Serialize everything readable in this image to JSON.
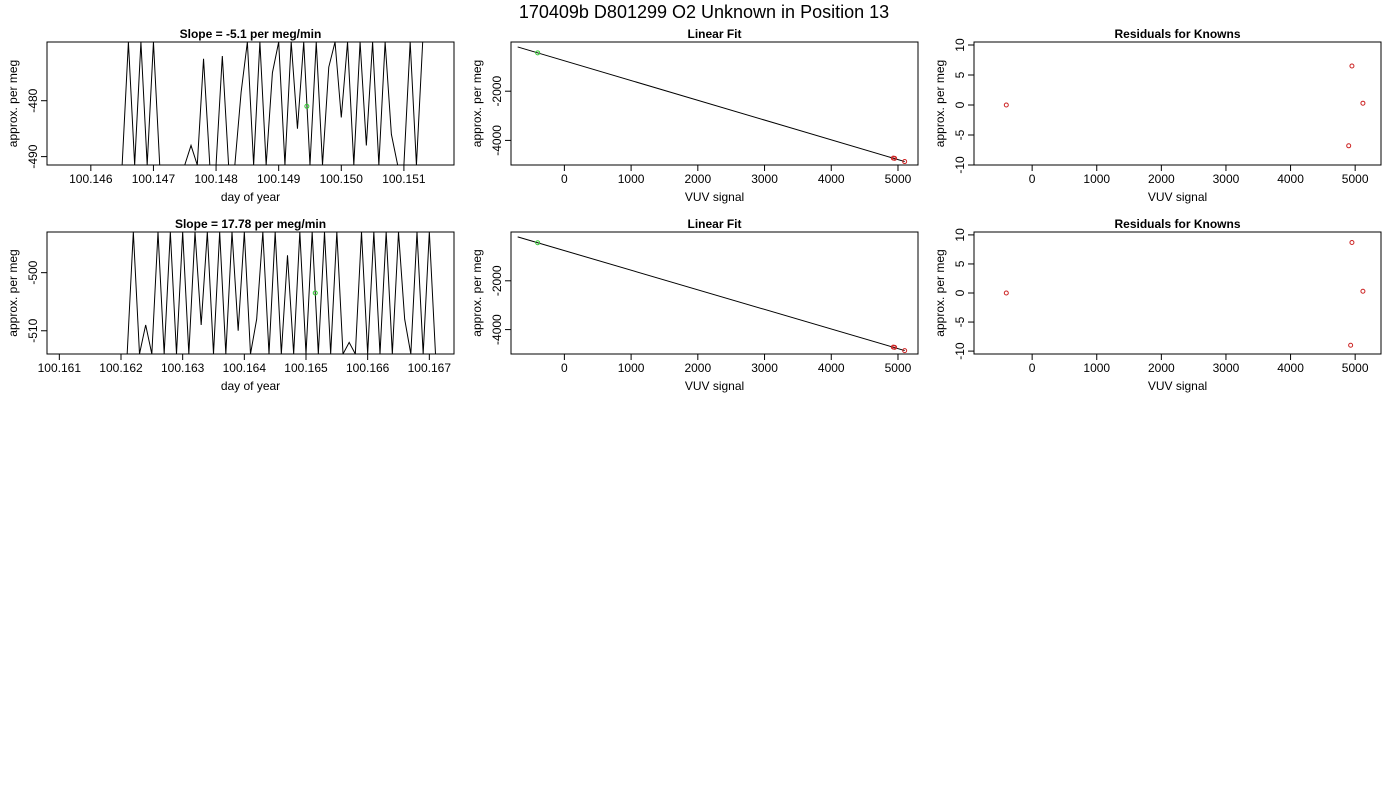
{
  "figure": {
    "title": "170409b     D801299   O2 Unknown in Position  13"
  },
  "chart_data": [
    {
      "type": "line",
      "title": "Slope =  -5.1  per meg/min",
      "xlabel": "day of year",
      "ylabel": "approx. per meg",
      "xlim": [
        100.1453,
        100.1518
      ],
      "ylim": [
        -491.5,
        -469.5
      ],
      "xticks": [
        "100.146",
        "100.147",
        "100.148",
        "100.149",
        "100.150",
        "100.151"
      ],
      "yticks": [
        "-480",
        "-490"
      ],
      "series": [
        {
          "style": "line",
          "color": "#000000",
          "x": [
            100.1465,
            100.1466,
            100.1467,
            100.1468,
            100.1469,
            100.147,
            100.1471,
            100.1472,
            100.1473,
            100.1474,
            100.1475,
            100.1476,
            100.1477,
            100.1478,
            100.1479,
            100.148,
            100.1481,
            100.1482,
            100.1483,
            100.1484,
            100.1485,
            100.1486,
            100.1487,
            100.1488,
            100.1489,
            100.149,
            100.1491,
            100.1492,
            100.1493,
            100.1494,
            100.1495,
            100.1496,
            100.1497,
            100.1498,
            100.1499,
            100.15,
            100.1501,
            100.1502,
            100.1503,
            100.1504,
            100.1505,
            100.1506,
            100.1507,
            100.1508,
            100.1509,
            100.151,
            100.1511,
            100.1512,
            100.1513
          ],
          "y": [
            -491.5,
            -469.5,
            -491.5,
            -469.5,
            -491.5,
            -469.5,
            -491.5,
            -491.5,
            -491.5,
            -491.5,
            -491.5,
            -488,
            -491.5,
            -472.5,
            -491.5,
            -491.5,
            -472,
            -491.5,
            -491.5,
            -478.5,
            -469.5,
            -491.5,
            -469.5,
            -491.5,
            -475,
            -469.5,
            -491.5,
            -469.5,
            -485,
            -469.5,
            -491.5,
            -469.5,
            -491.5,
            -474,
            -469.5,
            -483,
            -469.5,
            -491.5,
            -469.5,
            -488,
            -469.5,
            -491.5,
            -469.5,
            -486,
            -491.5,
            -491.5,
            -469.5,
            -491.5,
            -469.5
          ]
        },
        {
          "style": "point",
          "color": "#33cc33",
          "x": [
            100.14945
          ],
          "y": [
            -481
          ]
        }
      ]
    },
    {
      "type": "scatter",
      "title": "Linear Fit",
      "xlabel": "VUV signal",
      "ylabel": "approx. per meg",
      "xlim": [
        -800,
        5300
      ],
      "ylim": [
        -5000,
        0
      ],
      "xticks": [
        "0",
        "1000",
        "2000",
        "3000",
        "4000",
        "5000"
      ],
      "yticks": [
        "-2000",
        "-4000"
      ],
      "series": [
        {
          "style": "line",
          "color": "#000000",
          "x": [
            -700,
            5100
          ],
          "y": [
            -200,
            -4860
          ]
        },
        {
          "style": "point",
          "color": "#33cc33",
          "x": [
            -400
          ],
          "y": [
            -440
          ]
        },
        {
          "style": "point",
          "color": "#cc2222",
          "x": [
            4930,
            4950,
            5100
          ],
          "y": [
            -4720,
            -4730,
            -4860
          ]
        }
      ]
    },
    {
      "type": "scatter",
      "title": "Residuals for Knowns",
      "xlabel": "VUV signal",
      "ylabel": "approx. per meg",
      "xlim": [
        -900,
        5400
      ],
      "ylim": [
        -10,
        10.5
      ],
      "xticks": [
        "0",
        "1000",
        "2000",
        "3000",
        "4000",
        "5000"
      ],
      "yticks": [
        "10",
        "5",
        "0",
        "-5",
        "-10"
      ],
      "series": [
        {
          "style": "point",
          "color": "#cc2222",
          "x": [
            -400,
            4950,
            5120,
            4900
          ],
          "y": [
            0,
            6.5,
            0.3,
            -6.8
          ]
        }
      ]
    },
    {
      "type": "line",
      "title": "Slope =  17.78  per meg/min",
      "xlabel": "day of year",
      "ylabel": "approx. per meg",
      "xlim": [
        100.1608,
        100.1674
      ],
      "ylim": [
        -514,
        -493
      ],
      "xticks": [
        "100.161",
        "100.162",
        "100.163",
        "100.164",
        "100.165",
        "100.166",
        "100.167"
      ],
      "yticks": [
        "-500",
        "-510"
      ],
      "series": [
        {
          "style": "line",
          "color": "#000000",
          "x": [
            100.1621,
            100.1622,
            100.1623,
            100.1624,
            100.1625,
            100.1626,
            100.1627,
            100.1628,
            100.1629,
            100.163,
            100.1631,
            100.1632,
            100.1633,
            100.1634,
            100.1635,
            100.1636,
            100.1637,
            100.1638,
            100.1639,
            100.164,
            100.1641,
            100.1642,
            100.1643,
            100.1644,
            100.1645,
            100.1646,
            100.1647,
            100.1648,
            100.1649,
            100.165,
            100.1651,
            100.1652,
            100.1653,
            100.1654,
            100.1655,
            100.1656,
            100.1657,
            100.1658,
            100.1659,
            100.166,
            100.1661,
            100.1662,
            100.1663,
            100.1664,
            100.1665,
            100.1666,
            100.1667,
            100.1668,
            100.1669,
            100.167,
            100.1671
          ],
          "y": [
            -514,
            -493,
            -514,
            -509,
            -514,
            -493,
            -514,
            -493,
            -514,
            -493,
            -514,
            -493,
            -509,
            -493,
            -514,
            -493,
            -514,
            -493,
            -510,
            -493,
            -514,
            -508,
            -493,
            -514,
            -493,
            -514,
            -497,
            -514,
            -493,
            -514,
            -493,
            -514,
            -493,
            -514,
            -493,
            -514,
            -512,
            -514,
            -493,
            -514,
            -493,
            -514,
            -493,
            -514,
            -493,
            -508,
            -514,
            -493,
            -514,
            -493,
            -514
          ]
        },
        {
          "style": "point",
          "color": "#33cc33",
          "x": [
            100.16515
          ],
          "y": [
            -503.5
          ]
        }
      ]
    },
    {
      "type": "scatter",
      "title": "Linear Fit",
      "xlabel": "VUV signal",
      "ylabel": "approx. per meg",
      "xlim": [
        -800,
        5300
      ],
      "ylim": [
        -5000,
        0
      ],
      "xticks": [
        "0",
        "1000",
        "2000",
        "3000",
        "4000",
        "5000"
      ],
      "yticks": [
        "-2000",
        "-4000"
      ],
      "series": [
        {
          "style": "line",
          "color": "#000000",
          "x": [
            -700,
            5100
          ],
          "y": [
            -200,
            -4860
          ]
        },
        {
          "style": "point",
          "color": "#33cc33",
          "x": [
            -400
          ],
          "y": [
            -440
          ]
        },
        {
          "style": "point",
          "color": "#cc2222",
          "x": [
            4930,
            4950,
            5100
          ],
          "y": [
            -4720,
            -4730,
            -4860
          ]
        }
      ]
    },
    {
      "type": "scatter",
      "title": "Residuals for Knowns",
      "xlabel": "VUV signal",
      "ylabel": "approx. per meg",
      "xlim": [
        -900,
        5400
      ],
      "ylim": [
        -10.5,
        10.5
      ],
      "xticks": [
        "0",
        "1000",
        "2000",
        "3000",
        "4000",
        "5000"
      ],
      "yticks": [
        "10",
        "5",
        "0",
        "-5",
        "-10"
      ],
      "series": [
        {
          "style": "point",
          "color": "#cc2222",
          "x": [
            -400,
            4950,
            5120,
            4930
          ],
          "y": [
            0,
            8.7,
            0.3,
            -9
          ]
        }
      ]
    }
  ]
}
